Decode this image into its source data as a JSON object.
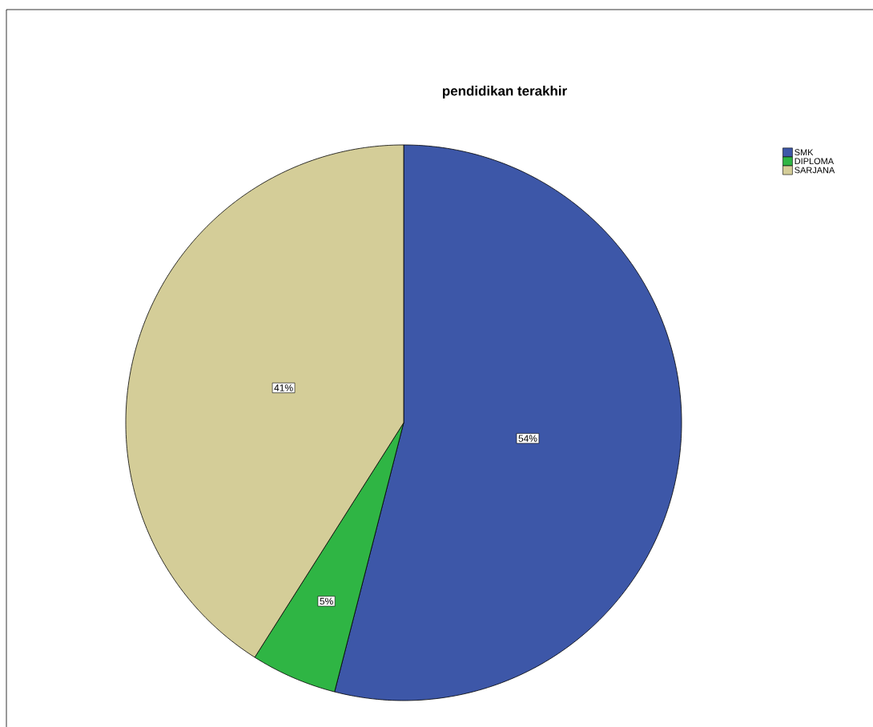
{
  "chart_data": {
    "type": "pie",
    "title": "pendidikan terakhir",
    "categories": [
      "SMK",
      "DIPLOMA",
      "SARJANA"
    ],
    "values": [
      54,
      5,
      41
    ],
    "colors": [
      "#3d57a8",
      "#2fb544",
      "#d4cd98"
    ],
    "value_labels": [
      "54%",
      "5%",
      "41%"
    ],
    "legend": "top right"
  }
}
